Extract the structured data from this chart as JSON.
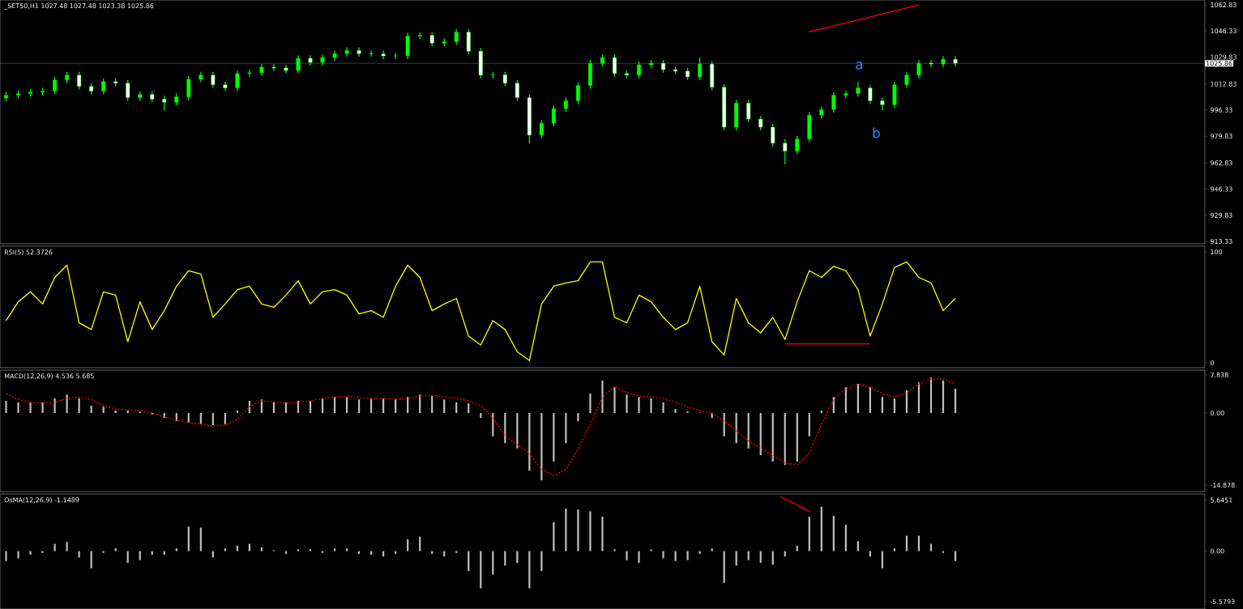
{
  "chart_data": [
    {
      "type": "candlestick",
      "title": "_SET50,H1 1027.48 1027.48 1023.38 1025.86",
      "categories": [
        null,
        null,
        null,
        null,
        null,
        null,
        null,
        null,
        null,
        null,
        null,
        null,
        null,
        null,
        null,
        null,
        null,
        null,
        null,
        null,
        null,
        null,
        null,
        null,
        null,
        null,
        null,
        null,
        null,
        null,
        null,
        null,
        null,
        null,
        null,
        null,
        null,
        null,
        null,
        null,
        null,
        null,
        null,
        null,
        null,
        null,
        null,
        null,
        null,
        null,
        null,
        null,
        null,
        null,
        null,
        null,
        null,
        null,
        null,
        null,
        null,
        null,
        null,
        null,
        null,
        null,
        null,
        null,
        null,
        null,
        null,
        null,
        null,
        null,
        null,
        null,
        null,
        null,
        null,
        null,
        null,
        null,
        null,
        null,
        null,
        null,
        null,
        null,
        null,
        null,
        null,
        null,
        null,
        null,
        null,
        null,
        null,
        null,
        null
      ],
      "ohlc": [
        [
          1004.0,
          1007.7,
          1002.0,
          1005.7
        ],
        [
          1005.7,
          1008.7,
          1003.7,
          1006.7
        ],
        [
          1006.7,
          1009.7,
          1004.7,
          1007.7
        ],
        [
          1007.7,
          1010.3,
          1005.7,
          1008.3
        ],
        [
          1008.3,
          1017.3,
          1006.3,
          1015.3
        ],
        [
          1015.3,
          1020.4,
          1013.3,
          1018.4
        ],
        [
          1018.4,
          1020.4,
          1009.3,
          1011.3
        ],
        [
          1011.3,
          1013.3,
          1006.3,
          1008.3
        ],
        [
          1008.3,
          1016.3,
          1006.3,
          1014.3
        ],
        [
          1014.3,
          1016.3,
          1011.3,
          1013.3
        ],
        [
          1013.3,
          1015.3,
          1002.2,
          1004.2
        ],
        [
          1004.2,
          1008.2,
          1002.2,
          1006.2
        ],
        [
          1006.2,
          1008.2,
          1001.2,
          1003.2
        ],
        [
          1003.2,
          1005.2,
          996.0,
          1001.2
        ],
        [
          1001.2,
          1006.7,
          999.2,
          1004.7
        ],
        [
          1004.7,
          1017.8,
          1002.7,
          1015.8
        ],
        [
          1015.8,
          1020.4,
          1013.8,
          1018.4
        ],
        [
          1018.4,
          1020.4,
          1010.3,
          1012.3
        ],
        [
          1012.3,
          1014.3,
          1008.3,
          1010.3
        ],
        [
          1010.3,
          1021.4,
          1008.3,
          1019.4
        ],
        [
          1019.4,
          1021.9,
          1017.4,
          1019.9
        ],
        [
          1019.9,
          1025.4,
          1017.9,
          1023.4
        ],
        [
          1023.4,
          1025.4,
          1020.9,
          1022.9
        ],
        [
          1022.9,
          1024.9,
          1019.4,
          1021.4
        ],
        [
          1021.4,
          1031.0,
          1019.4,
          1029.0
        ],
        [
          1029.0,
          1031.0,
          1024.4,
          1026.4
        ],
        [
          1026.4,
          1031.5,
          1024.4,
          1029.5
        ],
        [
          1029.5,
          1034.0,
          1027.5,
          1032.0
        ],
        [
          1032.0,
          1036.0,
          1030.0,
          1034.0
        ],
        [
          1034.0,
          1036.0,
          1030.0,
          1032.0
        ],
        [
          1032.0,
          1034.0,
          1030.0,
          1031.8
        ],
        [
          1031.8,
          1034.0,
          1028.5,
          1030.5
        ],
        [
          1030.5,
          1032.5,
          1028.5,
          1030.6
        ],
        [
          1030.6,
          1045.1,
          1028.5,
          1043.1
        ],
        [
          1043.1,
          1045.6,
          1041.1,
          1043.6
        ],
        [
          1043.6,
          1045.6,
          1036.6,
          1038.6
        ],
        [
          1038.6,
          1041.6,
          1036.6,
          1039.6
        ],
        [
          1039.6,
          1047.6,
          1037.6,
          1045.6
        ],
        [
          1045.6,
          1047.6,
          1031.5,
          1033.5
        ],
        [
          1033.5,
          1035.5,
          1016.4,
          1018.4
        ],
        [
          1018.4,
          1020.4,
          1016.4,
          1018.6
        ],
        [
          1018.6,
          1020.4,
          1011.3,
          1013.3
        ],
        [
          1013.3,
          1015.3,
          1002.2,
          1004.2
        ],
        [
          1004.2,
          1006.2,
          975.0,
          980.5
        ],
        [
          980.5,
          990.0,
          978.5,
          988.0
        ],
        [
          988.0,
          999.2,
          986.0,
          997.2
        ],
        [
          997.2,
          1004.2,
          995.2,
          1002.2
        ],
        [
          1002.2,
          1013.8,
          1000.2,
          1011.8
        ],
        [
          1011.8,
          1027.9,
          1009.8,
          1025.9
        ],
        [
          1025.9,
          1031.5,
          1023.9,
          1029.5
        ],
        [
          1029.5,
          1031.5,
          1017.4,
          1019.4
        ],
        [
          1019.4,
          1021.4,
          1016.4,
          1018.4
        ],
        [
          1018.4,
          1026.9,
          1016.4,
          1024.9
        ],
        [
          1024.9,
          1027.9,
          1022.9,
          1025.9
        ],
        [
          1025.9,
          1027.9,
          1019.9,
          1021.9
        ],
        [
          1021.9,
          1023.9,
          1018.9,
          1020.9
        ],
        [
          1020.9,
          1022.9,
          1015.3,
          1017.3
        ],
        [
          1017.3,
          1029.5,
          1015.3,
          1025.4
        ],
        [
          1025.4,
          1027.4,
          1008.8,
          1010.8
        ],
        [
          1010.8,
          1012.8,
          983.5,
          985.5
        ],
        [
          985.5,
          1002.7,
          983.5,
          1000.7
        ],
        [
          1000.7,
          1002.7,
          988.6,
          990.6
        ],
        [
          990.6,
          992.6,
          983.5,
          985.5
        ],
        [
          985.5,
          987.5,
          973.4,
          975.4
        ],
        [
          975.4,
          978.0,
          962.0,
          970.4
        ],
        [
          970.4,
          980.0,
          968.4,
          978.0
        ],
        [
          978.0,
          995.1,
          976.0,
          993.1
        ],
        [
          993.1,
          998.7,
          991.1,
          996.7
        ],
        [
          996.7,
          1007.7,
          994.7,
          1005.7
        ],
        [
          1005.7,
          1008.7,
          1003.7,
          1006.7
        ],
        [
          1006.7,
          1014.0,
          1004.7,
          1010.3
        ],
        [
          1010.3,
          1012.3,
          1000.2,
          1002.2
        ],
        [
          1002.2,
          1004.2,
          996.0,
          999.7
        ],
        [
          999.7,
          1014.3,
          997.7,
          1012.3
        ],
        [
          1012.3,
          1020.4,
          1010.3,
          1018.4
        ],
        [
          1018.4,
          1027.9,
          1016.4,
          1025.9
        ],
        [
          1025.9,
          1027.9,
          1023.4,
          1025.4
        ],
        [
          1025.4,
          1030.4,
          1023.4,
          1028.4
        ],
        [
          1028.4,
          1030.4,
          1023.9,
          1025.9
        ],
        null,
        null,
        null,
        null,
        null,
        null,
        null,
        null,
        null,
        null,
        null,
        null,
        null,
        null,
        null,
        null,
        null,
        null,
        null,
        null
      ],
      "color": "#00ff00",
      "series": [
        {
          "type": "line",
          "color": "#ff0000",
          "values": [
            null,
            null,
            null,
            null,
            null,
            null,
            null,
            null,
            null,
            null,
            null,
            null,
            null,
            null,
            null,
            null,
            null,
            null,
            null,
            null,
            null,
            null,
            null,
            null,
            null,
            null,
            null,
            null,
            null,
            null,
            null,
            null,
            null,
            null,
            null,
            null,
            null,
            null,
            null,
            null,
            null,
            null,
            null,
            null,
            null,
            null,
            null,
            null,
            null,
            null,
            null,
            null,
            null,
            null,
            null,
            null,
            null,
            null,
            null,
            null,
            null,
            null,
            null,
            null,
            null,
            null,
            1045.8,
            1047.6,
            1049.5,
            1051.4,
            1053.3,
            1055.2,
            1057.1,
            1059.0,
            1060.9,
            1062.8,
            null,
            null,
            null,
            null,
            null,
            null,
            null,
            null,
            null,
            null,
            null,
            null,
            null,
            null,
            null,
            null,
            null,
            null,
            null,
            null,
            null,
            null,
            null
          ]
        }
      ],
      "ylim": [
        911.8,
        1065.9
      ],
      "yticks": [
        913.33,
        929.83,
        946.33,
        962.83,
        979.83,
        996.33,
        1012.83,
        1029.83,
        1046.33,
        1062.83
      ],
      "tick_labels": "y",
      "ref_lines": [
        {
          "axis": "y",
          "value": 1025.86,
          "label": "1025.86",
          "color": "#8c9cb0"
        }
      ],
      "annotations": [
        "a",
        "b"
      ]
    },
    {
      "type": "line",
      "title": "RSI(5) 52.3726",
      "categories": [
        null,
        null,
        null,
        null,
        null,
        null,
        null,
        null,
        null,
        null,
        null,
        null,
        null,
        null,
        null,
        null,
        null,
        null,
        null,
        null,
        null,
        null,
        null,
        null,
        null,
        null,
        null,
        null,
        null,
        null,
        null,
        null,
        null,
        null,
        null,
        null,
        null,
        null,
        null,
        null,
        null,
        null,
        null,
        null,
        null,
        null,
        null,
        null,
        null,
        null,
        null,
        null,
        null,
        null,
        null,
        null,
        null,
        null,
        null,
        null,
        null,
        null,
        null,
        null,
        null,
        null,
        null,
        null,
        null,
        null,
        null,
        null,
        null,
        null,
        null,
        null,
        null,
        null,
        null,
        null,
        null,
        null,
        null,
        null,
        null,
        null,
        null,
        null,
        null,
        null,
        null,
        null,
        null,
        null,
        null,
        null,
        null,
        null,
        null
      ],
      "series": [
        {
          "type": "line",
          "color": "#ff0000",
          "values": [
            null,
            null,
            null,
            null,
            null,
            null,
            null,
            null,
            null,
            null,
            null,
            null,
            null,
            null,
            null,
            null,
            null,
            null,
            null,
            null,
            null,
            null,
            null,
            null,
            null,
            null,
            null,
            null,
            null,
            null,
            null,
            null,
            null,
            null,
            null,
            null,
            null,
            null,
            null,
            null,
            null,
            null,
            null,
            null,
            null,
            null,
            null,
            null,
            null,
            null,
            null,
            null,
            null,
            null,
            null,
            null,
            null,
            null,
            null,
            null,
            null,
            null,
            null,
            null,
            17,
            17,
            17,
            17,
            17,
            17,
            17,
            17,
            null,
            null,
            null,
            null,
            null,
            null,
            null,
            null,
            null,
            null,
            null,
            null,
            null,
            null,
            null,
            null,
            null,
            null,
            null,
            null,
            null,
            null,
            null,
            null,
            null,
            null,
            null
          ]
        },
        {
          "color": "#ffff00",
          "values": [
            38,
            55,
            64,
            53,
            77,
            88,
            36,
            30,
            64,
            61,
            19,
            55,
            30,
            47,
            69,
            83,
            80,
            41,
            53,
            66,
            69,
            53,
            50,
            61,
            74,
            53,
            64,
            66,
            61,
            44,
            47,
            41,
            69,
            88,
            77,
            47,
            53,
            58,
            24,
            16,
            38,
            30,
            10,
            2,
            53,
            69,
            72,
            74,
            91,
            91,
            41,
            36,
            61,
            55,
            41,
            30,
            36,
            69,
            19,
            7,
            58,
            36,
            27,
            41,
            21,
            55,
            83,
            77,
            87,
            83,
            66,
            24,
            53,
            86,
            91,
            77,
            72,
            47,
            58,
            null,
            null,
            null,
            null,
            null,
            null,
            null,
            null,
            null,
            null,
            null,
            null,
            null,
            null,
            null,
            null,
            null,
            null,
            null,
            null
          ]
        }
      ],
      "ylim": [
        -4.4,
        105.1
      ],
      "yticks": [
        0,
        100
      ],
      "tick_labels": "y"
    },
    {
      "type": "bar",
      "title": "MACD(12,26,9) 4.536 5.685",
      "categories": [
        null,
        null,
        null,
        null,
        null,
        null,
        null,
        null,
        null,
        null,
        null,
        null,
        null,
        null,
        null,
        null,
        null,
        null,
        null,
        null,
        null,
        null,
        null,
        null,
        null,
        null,
        null,
        null,
        null,
        null,
        null,
        null,
        null,
        null,
        null,
        null,
        null,
        null,
        null,
        null,
        null,
        null,
        null,
        null,
        null,
        null,
        null,
        null,
        null,
        null,
        null,
        null,
        null,
        null,
        null,
        null,
        null,
        null,
        null,
        null,
        null,
        null,
        null,
        null,
        null,
        null,
        null,
        null,
        null,
        null,
        null,
        null,
        null,
        null,
        null,
        null,
        null,
        null,
        null,
        null,
        null,
        null,
        null,
        null,
        null,
        null,
        null,
        null,
        null,
        null,
        null,
        null,
        null,
        null,
        null,
        null,
        null,
        null,
        null
      ],
      "series": [
        {
          "color": "#c0c0c0",
          "values": [
            2.5,
            2.2,
            2.2,
            2.2,
            3.0,
            3.8,
            3.0,
            1.5,
            1.3,
            0.5,
            0.5,
            0.3,
            -0.3,
            -1.0,
            -1.7,
            -2.0,
            -2.3,
            -2.5,
            -2.3,
            0.5,
            2.5,
            2.8,
            2.2,
            2.2,
            2.5,
            2.5,
            3.0,
            3.3,
            3.3,
            2.8,
            3.0,
            3.0,
            2.8,
            3.3,
            3.8,
            3.5,
            2.8,
            2.2,
            2.0,
            -1.0,
            -4.8,
            -6.2,
            -7.3,
            -11.9,
            -13.9,
            -10.0,
            -6.2,
            -1.7,
            4.0,
            6.7,
            5.3,
            3.8,
            3.3,
            3.0,
            2.2,
            0.8,
            0.3,
            0.1,
            -1.0,
            -4.8,
            -6.2,
            -7.3,
            -8.7,
            -10.0,
            -10.7,
            -10.0,
            -4.8,
            0.5,
            3.3,
            5.3,
            6.0,
            5.3,
            3.3,
            3.0,
            4.7,
            6.3,
            7.3,
            6.7,
            5.0,
            null,
            null,
            null,
            null,
            null,
            null,
            null,
            null,
            null,
            null,
            null,
            null,
            null,
            null,
            null,
            null,
            null,
            null,
            null,
            null
          ]
        },
        {
          "type": "line",
          "color": "#ff0000",
          "line_style": "dashed",
          "values": [
            4.0,
            2.8,
            2.2,
            2.0,
            2.2,
            3.0,
            3.3,
            2.8,
            1.5,
            0.8,
            0.7,
            0.5,
            0,
            -0.8,
            -1.5,
            -2.0,
            -2.3,
            -2.7,
            -2.5,
            -1.3,
            1.3,
            2.5,
            2.3,
            2.0,
            2.2,
            2.5,
            3.0,
            3.3,
            3.5,
            3.2,
            3.0,
            3.0,
            3.0,
            3.0,
            3.5,
            3.7,
            3.3,
            3.0,
            2.5,
            1.5,
            -1.0,
            -4.8,
            -6.5,
            -8.3,
            -11.6,
            -12.9,
            -11.6,
            -7.3,
            -2.3,
            3.3,
            5.5,
            4.2,
            3.5,
            3.3,
            3.0,
            2.2,
            1.3,
            0.5,
            0,
            -1.7,
            -3.7,
            -5.7,
            -7.3,
            -8.7,
            -10.3,
            -10.7,
            -8.3,
            -2.3,
            2.8,
            5.0,
            6.0,
            5.3,
            4.0,
            3.3,
            4.2,
            6.0,
            7.0,
            7.0,
            6.0,
            null,
            null,
            null,
            null,
            null,
            null,
            null,
            null,
            null,
            null,
            null,
            null,
            null,
            null,
            null,
            null,
            null,
            null,
            null,
            null
          ]
        }
      ],
      "ylim": [
        -16.2,
        8.85
      ],
      "yticks": [
        -14.878,
        {
          "value": 0,
          "label": "0.00"
        },
        7.838
      ],
      "tick_labels": "y"
    },
    {
      "type": "bar",
      "title": "OsMA(12,26,9) -1.1489",
      "categories": [
        null,
        null,
        null,
        null,
        null,
        null,
        null,
        null,
        null,
        null,
        null,
        null,
        null,
        null,
        null,
        null,
        null,
        null,
        null,
        null,
        null,
        null,
        null,
        null,
        null,
        null,
        null,
        null,
        null,
        null,
        null,
        null,
        null,
        null,
        null,
        null,
        null,
        null,
        null,
        null,
        null,
        null,
        null,
        null,
        null,
        null,
        null,
        null,
        null,
        null,
        null,
        null,
        null,
        null,
        null,
        null,
        null,
        null,
        null,
        null,
        null,
        null,
        null,
        null,
        null,
        null,
        null,
        null,
        null,
        null,
        null,
        null,
        null,
        null,
        null,
        null,
        null,
        null,
        null,
        null,
        null,
        null,
        null,
        null,
        null,
        null,
        null,
        null,
        null,
        null,
        null,
        null,
        null,
        null,
        null,
        null,
        null,
        null,
        null
      ],
      "series": [
        {
          "color": "#c0c0c0",
          "values": [
            -1.1,
            -0.8,
            -0.4,
            -0.2,
            0.8,
            1.0,
            -0.7,
            -1.9,
            -0.2,
            0.3,
            -1.3,
            -1.0,
            -0.4,
            -0.4,
            0.3,
            2.7,
            2.6,
            -0.7,
            0.3,
            0.6,
            0.8,
            0.4,
            0.1,
            -0.3,
            0.2,
            0.2,
            -0.2,
            0.3,
            0.3,
            -0.3,
            -0.4,
            -0.6,
            -0.3,
            1.3,
            1.6,
            -0.3,
            -0.6,
            -0.2,
            -2.2,
            -4.1,
            -2.6,
            -1.6,
            -1.3,
            -4.1,
            -2.2,
            3.2,
            4.7,
            4.6,
            4.4,
            3.8,
            0.2,
            -1.0,
            -1.3,
            0.2,
            -0.8,
            -1.1,
            -1.0,
            -0.3,
            0.3,
            -3.5,
            -1.6,
            -1.0,
            -1.3,
            -1.5,
            -0.6,
            0.6,
            3.8,
            4.9,
            3.9,
            2.9,
            1.1,
            -0.6,
            -1.9,
            0.3,
            1.7,
            1.7,
            0.8,
            -0.2,
            -1.1,
            null,
            null,
            null,
            null,
            null,
            null,
            null,
            null,
            null,
            null,
            null,
            null,
            null,
            null,
            null,
            null,
            null,
            null,
            null,
            null
          ]
        }
      ],
      "ylim": [
        -6.4,
        6.31
      ],
      "yticks": [
        -5.5793,
        {
          "value": 0,
          "label": "0.00"
        },
        5.6451
      ],
      "tick_labels": "y"
    }
  ]
}
